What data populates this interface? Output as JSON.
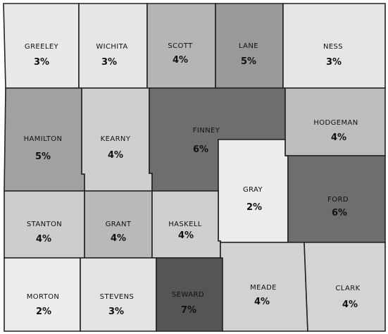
{
  "map": {
    "counties": [
      {
        "id": "greeley",
        "name": "GREELEY",
        "value": "3%",
        "fill": "#e9e9e9",
        "text_color": "#111111"
      },
      {
        "id": "wichita",
        "name": "WICHITA",
        "value": "3%",
        "fill": "#e6e6e6",
        "text_color": "#111111"
      },
      {
        "id": "scott",
        "name": "SCOTT",
        "value": "4%",
        "fill": "#b5b5b5",
        "text_color": "#111111"
      },
      {
        "id": "lane",
        "name": "LANE",
        "value": "5%",
        "fill": "#999999",
        "text_color": "#111111"
      },
      {
        "id": "ness",
        "name": "NESS",
        "value": "3%",
        "fill": "#e6e6e6",
        "text_color": "#111111"
      },
      {
        "id": "hamilton",
        "name": "HAMILTON",
        "value": "5%",
        "fill": "#a1a1a1",
        "text_color": "#111111"
      },
      {
        "id": "kearny",
        "name": "KEARNY",
        "value": "4%",
        "fill": "#cfcfcf",
        "text_color": "#111111"
      },
      {
        "id": "finney",
        "name": "FINNEY",
        "value": "6%",
        "fill": "#6e6e6e",
        "text_color": "#111111"
      },
      {
        "id": "hodgeman",
        "name": "HODGEMAN",
        "value": "4%",
        "fill": "#bdbdbd",
        "text_color": "#111111"
      },
      {
        "id": "gray",
        "name": "GRAY",
        "value": "2%",
        "fill": "#ececec",
        "text_color": "#111111"
      },
      {
        "id": "ford",
        "name": "FORD",
        "value": "6%",
        "fill": "#6e6e6e",
        "text_color": "#111111"
      },
      {
        "id": "stanton",
        "name": "STANTON",
        "value": "4%",
        "fill": "#cdcdcd",
        "text_color": "#111111"
      },
      {
        "id": "grant",
        "name": "GRANT",
        "value": "4%",
        "fill": "#b9b9b9",
        "text_color": "#111111"
      },
      {
        "id": "haskell",
        "name": "HASKELL",
        "value": "4%",
        "fill": "#cfcfcf",
        "text_color": "#111111"
      },
      {
        "id": "morton",
        "name": "MORTON",
        "value": "2%",
        "fill": "#ececec",
        "text_color": "#111111"
      },
      {
        "id": "stevens",
        "name": "STEVENS",
        "value": "3%",
        "fill": "#e3e3e3",
        "text_color": "#111111"
      },
      {
        "id": "seward",
        "name": "SEWARD",
        "value": "7%",
        "fill": "#555555",
        "text_color": "#111111"
      },
      {
        "id": "meade",
        "name": "MEADE",
        "value": "4%",
        "fill": "#d2d2d2",
        "text_color": "#111111"
      },
      {
        "id": "clark",
        "name": "CLARK",
        "value": "4%",
        "fill": "#d4d4d4",
        "text_color": "#111111"
      }
    ]
  }
}
